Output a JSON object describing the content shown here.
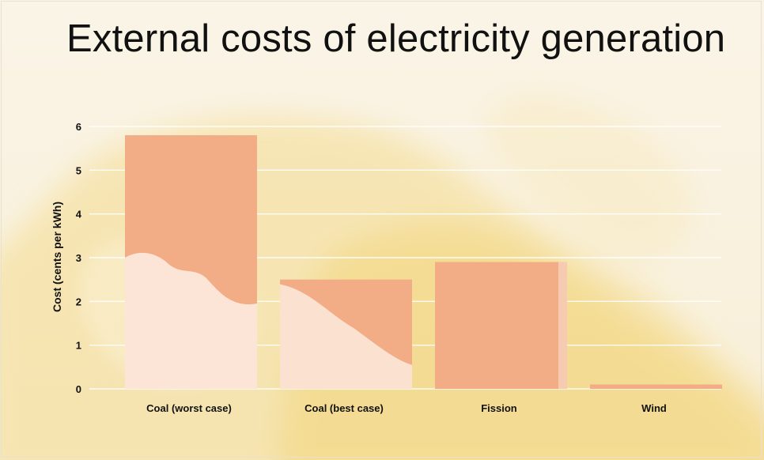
{
  "slide": {
    "title": "External costs of electricity generation"
  },
  "chart_data": {
    "type": "bar",
    "title": "External costs of electricity generation",
    "categories": [
      "Coal (worst case)",
      "Coal (best case)",
      "Fission",
      "Wind"
    ],
    "values": [
      5.8,
      2.5,
      2.9,
      0.1
    ],
    "xlabel": "",
    "ylabel": "Cost (cents per kWh)",
    "ylim": [
      0,
      6
    ],
    "yticks": [
      0,
      1,
      2,
      3,
      4,
      5,
      6
    ],
    "grid": true,
    "legend": "none"
  },
  "colors": {
    "bar": "#f2ad86",
    "bar_light": "#fce8da",
    "grid": "#ffffff",
    "text": "#111111",
    "background": "#f7f1e2",
    "cloud": "#f2d67f"
  }
}
